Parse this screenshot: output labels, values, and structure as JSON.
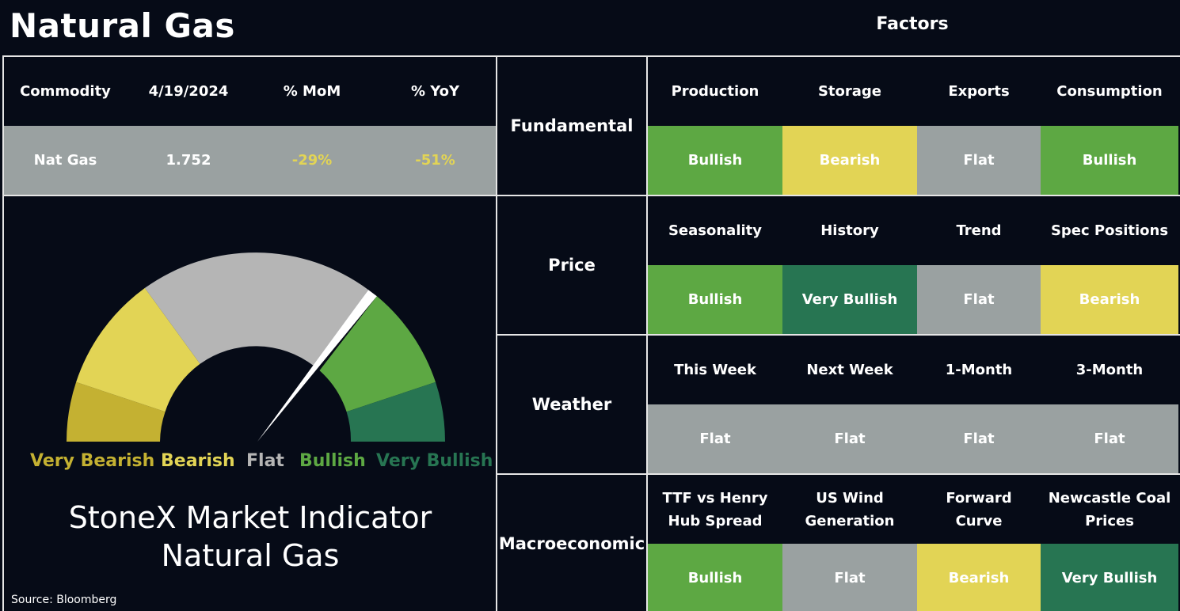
{
  "title": "Natural Gas",
  "factors_title": "Factors",
  "commodity_table": {
    "headers": [
      "Commodity",
      "4/19/2024",
      "% MoM",
      "% YoY"
    ],
    "row": [
      "Nat Gas",
      "1.752",
      "-29%",
      "-51%"
    ]
  },
  "gauge": {
    "labels": [
      "Very Bearish",
      "Bearish",
      "Flat",
      "Bullish",
      "Very Bullish"
    ],
    "label_colors": [
      "#c4b132",
      "#e2d455",
      "#b5b5b5",
      "#5da843",
      "#277552"
    ],
    "reading": "Bullish"
  },
  "indicator_title": [
    "StoneX Market Indicator",
    "Natural Gas"
  ],
  "source": "Source: Bloomberg",
  "categories": [
    {
      "name": "Fundamental",
      "factors": [
        "Production",
        "Storage",
        "Exports",
        "Consumption"
      ],
      "ratings": [
        "Bullish",
        "Bearish",
        "Flat",
        "Bullish"
      ]
    },
    {
      "name": "Price",
      "factors": [
        "Seasonality",
        "History",
        "Trend",
        "Spec Positions"
      ],
      "ratings": [
        "Bullish",
        "Very Bullish",
        "Flat",
        "Bearish"
      ]
    },
    {
      "name": "Weather",
      "factors": [
        "This Week",
        "Next Week",
        "1-Month",
        "3-Month"
      ],
      "ratings": [
        "Flat",
        "Flat",
        "Flat",
        "Flat"
      ]
    },
    {
      "name": "Macroeconomic",
      "factors": [
        "TTF vs Henry Hub Spread",
        "US Wind Generation",
        "Forward Curve",
        "Newcastle Coal Prices"
      ],
      "ratings": [
        "Bullish",
        "Flat",
        "Bearish",
        "Very Bullish"
      ]
    }
  ],
  "rating_colors": {
    "Very Bullish": "#277552",
    "Bullish": "#5da843",
    "Flat": "#9aa1a1",
    "Bearish": "#e2d455",
    "Very Bearish": "#c4b132"
  }
}
